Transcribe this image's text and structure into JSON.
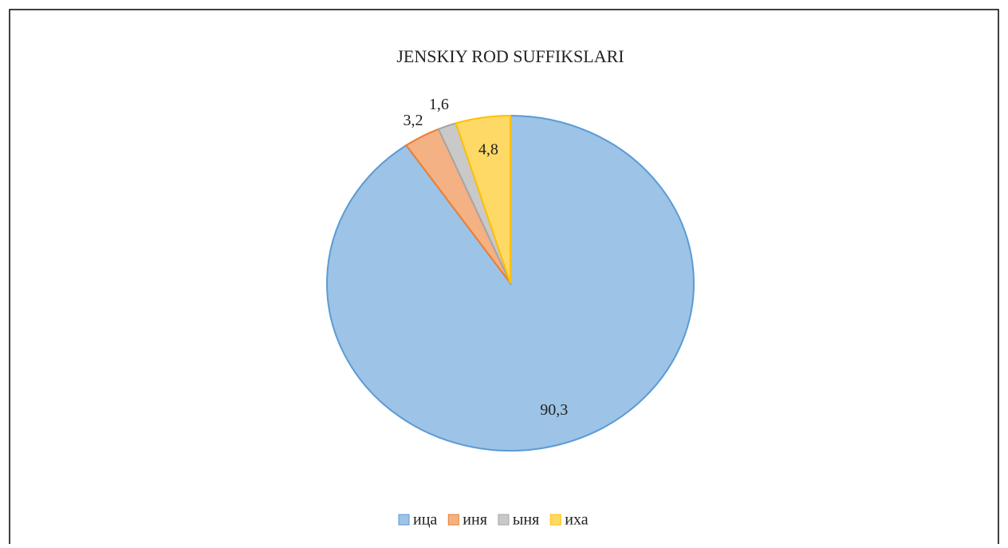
{
  "chart_data": {
    "type": "pie",
    "title": "JENSKIY ROD SUFFIKSLARI",
    "categories": [
      "ица",
      "иня",
      "ыня",
      "иха"
    ],
    "values": [
      90.3,
      3.2,
      1.6,
      4.8
    ],
    "value_labels": [
      "90,3",
      "3,2",
      "1,6",
      "4,8"
    ],
    "colors": [
      "#9dc3e6",
      "#f4b183",
      "#c9c9c9",
      "#ffd966"
    ],
    "legend": "bottom"
  }
}
